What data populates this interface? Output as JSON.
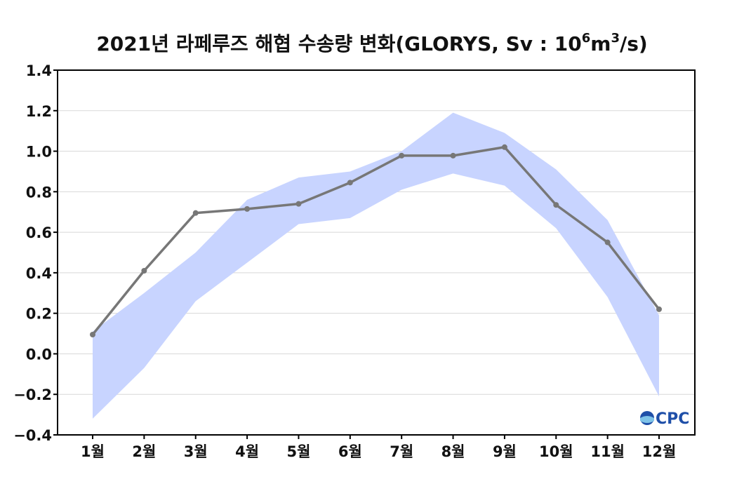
{
  "chart_data": {
    "type": "line",
    "title": {
      "main": "2021년 라페루즈 해협 수송량 변화(GLORYS, Sv : 10",
      "exp1": "6",
      "mid": "m",
      "exp2": "3",
      "end": "/s)"
    },
    "categories": [
      "1월",
      "2월",
      "3월",
      "4월",
      "5월",
      "6월",
      "7월",
      "8월",
      "9월",
      "10월",
      "11월",
      "12월"
    ],
    "series": [
      {
        "values": [
          0.095,
          0.41,
          0.695,
          0.715,
          0.74,
          0.845,
          0.978,
          0.978,
          1.02,
          0.735,
          0.55,
          0.22
        ]
      }
    ],
    "band": {
      "upper": [
        0.11,
        0.3,
        0.5,
        0.76,
        0.87,
        0.9,
        1.0,
        1.19,
        1.09,
        0.91,
        0.66,
        0.19
      ],
      "lower": [
        -0.32,
        -0.07,
        0.26,
        0.45,
        0.64,
        0.67,
        0.81,
        0.89,
        0.83,
        0.62,
        0.28,
        -0.21
      ]
    },
    "ylim": [
      -0.4,
      1.4
    ],
    "yticks": [
      1.4,
      1.2,
      1.0,
      0.8,
      0.6,
      0.4,
      0.2,
      0.0,
      -0.2,
      -0.4
    ],
    "ytick_labels": [
      "1.4",
      "1.2",
      "1.0",
      "0.8",
      "0.6",
      "0.4",
      "0.2",
      "0.0",
      "−0.2",
      "−0.4"
    ],
    "grid": true,
    "colors": {
      "line": "#777777",
      "band": "#c8d4ff",
      "grid": "#d8d8d8",
      "axis": "#000000"
    }
  },
  "logo": {
    "text": "OCPC",
    "colors": [
      "#1f4fa8",
      "#7fc3e8"
    ]
  }
}
